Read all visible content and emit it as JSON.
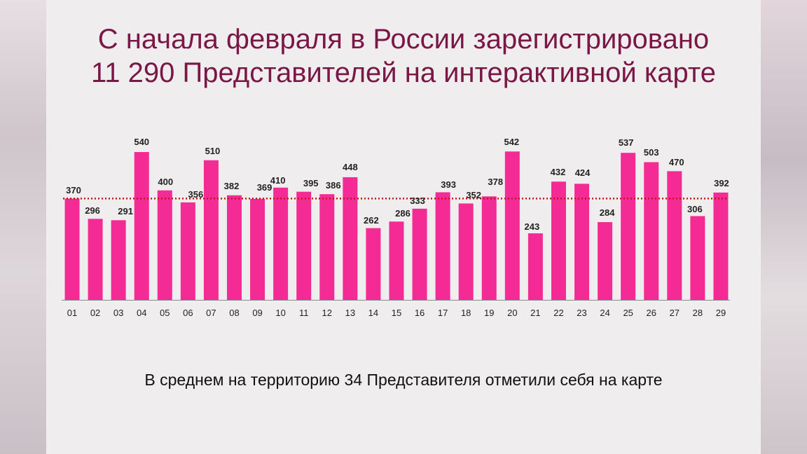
{
  "slide": {
    "title_line1": "С начала февраля в России зарегистрировано",
    "title_line2": "11 290 Представителей на интерактивной карте",
    "subtitle": "В среднем на территорию 34 Представителя отметили себя на карте"
  },
  "colors": {
    "bar": "#f42b94",
    "average_line": "#c0180f",
    "title": "#7a1747"
  },
  "chart_data": {
    "type": "bar",
    "categories": [
      "01",
      "02",
      "03",
      "04",
      "05",
      "06",
      "07",
      "08",
      "09",
      "10",
      "11",
      "12",
      "13",
      "14",
      "15",
      "16",
      "17",
      "18",
      "19",
      "20",
      "21",
      "22",
      "23",
      "24",
      "25",
      "26",
      "27",
      "28",
      "29"
    ],
    "values": [
      370,
      296,
      291,
      540,
      400,
      356,
      510,
      382,
      369,
      410,
      395,
      386,
      448,
      262,
      286,
      333,
      393,
      352,
      378,
      542,
      243,
      432,
      424,
      284,
      537,
      503,
      470,
      306,
      392
    ],
    "reference_line": {
      "value": 370,
      "style": "dotted",
      "color": "#c0180f"
    },
    "ylim": [
      0,
      560
    ],
    "grid": false,
    "legend": "none",
    "xlabel": "",
    "ylabel": ""
  }
}
